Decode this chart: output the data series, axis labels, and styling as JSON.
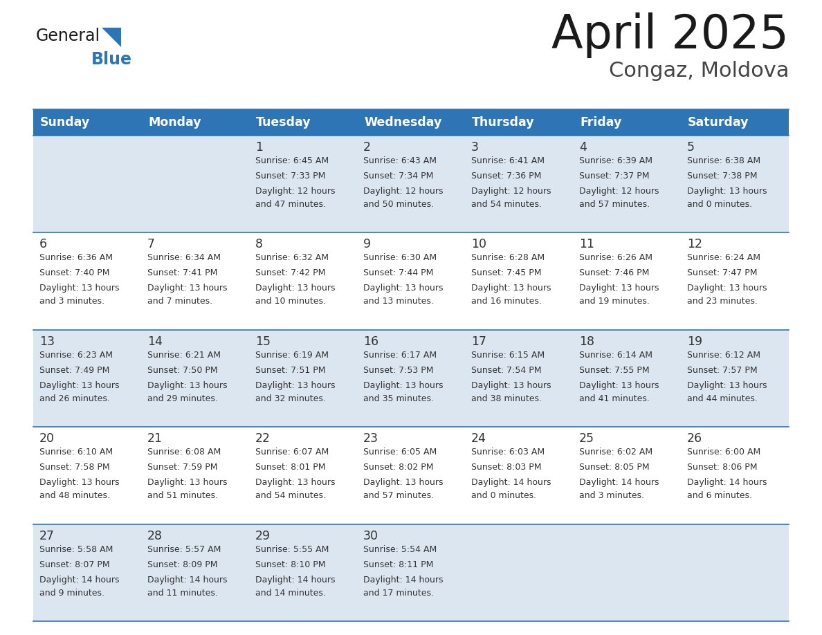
{
  "title": "April 2025",
  "subtitle": "Congaz, Moldova",
  "header_bg_color": "#2e75b6",
  "header_text_color": "#ffffff",
  "row_bg_even": "#dce6f1",
  "row_bg_odd": "#ffffff",
  "cell_border_color": "#2e75b6",
  "text_color": "#333333",
  "day_names": [
    "Sunday",
    "Monday",
    "Tuesday",
    "Wednesday",
    "Thursday",
    "Friday",
    "Saturday"
  ],
  "weeks": [
    [
      {
        "day": null,
        "sunrise": null,
        "sunset": null,
        "daylight": null
      },
      {
        "day": null,
        "sunrise": null,
        "sunset": null,
        "daylight": null
      },
      {
        "day": 1,
        "sunrise": "6:45 AM",
        "sunset": "7:33 PM",
        "daylight": "12 hours\nand 47 minutes."
      },
      {
        "day": 2,
        "sunrise": "6:43 AM",
        "sunset": "7:34 PM",
        "daylight": "12 hours\nand 50 minutes."
      },
      {
        "day": 3,
        "sunrise": "6:41 AM",
        "sunset": "7:36 PM",
        "daylight": "12 hours\nand 54 minutes."
      },
      {
        "day": 4,
        "sunrise": "6:39 AM",
        "sunset": "7:37 PM",
        "daylight": "12 hours\nand 57 minutes."
      },
      {
        "day": 5,
        "sunrise": "6:38 AM",
        "sunset": "7:38 PM",
        "daylight": "13 hours\nand 0 minutes."
      }
    ],
    [
      {
        "day": 6,
        "sunrise": "6:36 AM",
        "sunset": "7:40 PM",
        "daylight": "13 hours\nand 3 minutes."
      },
      {
        "day": 7,
        "sunrise": "6:34 AM",
        "sunset": "7:41 PM",
        "daylight": "13 hours\nand 7 minutes."
      },
      {
        "day": 8,
        "sunrise": "6:32 AM",
        "sunset": "7:42 PM",
        "daylight": "13 hours\nand 10 minutes."
      },
      {
        "day": 9,
        "sunrise": "6:30 AM",
        "sunset": "7:44 PM",
        "daylight": "13 hours\nand 13 minutes."
      },
      {
        "day": 10,
        "sunrise": "6:28 AM",
        "sunset": "7:45 PM",
        "daylight": "13 hours\nand 16 minutes."
      },
      {
        "day": 11,
        "sunrise": "6:26 AM",
        "sunset": "7:46 PM",
        "daylight": "13 hours\nand 19 minutes."
      },
      {
        "day": 12,
        "sunrise": "6:24 AM",
        "sunset": "7:47 PM",
        "daylight": "13 hours\nand 23 minutes."
      }
    ],
    [
      {
        "day": 13,
        "sunrise": "6:23 AM",
        "sunset": "7:49 PM",
        "daylight": "13 hours\nand 26 minutes."
      },
      {
        "day": 14,
        "sunrise": "6:21 AM",
        "sunset": "7:50 PM",
        "daylight": "13 hours\nand 29 minutes."
      },
      {
        "day": 15,
        "sunrise": "6:19 AM",
        "sunset": "7:51 PM",
        "daylight": "13 hours\nand 32 minutes."
      },
      {
        "day": 16,
        "sunrise": "6:17 AM",
        "sunset": "7:53 PM",
        "daylight": "13 hours\nand 35 minutes."
      },
      {
        "day": 17,
        "sunrise": "6:15 AM",
        "sunset": "7:54 PM",
        "daylight": "13 hours\nand 38 minutes."
      },
      {
        "day": 18,
        "sunrise": "6:14 AM",
        "sunset": "7:55 PM",
        "daylight": "13 hours\nand 41 minutes."
      },
      {
        "day": 19,
        "sunrise": "6:12 AM",
        "sunset": "7:57 PM",
        "daylight": "13 hours\nand 44 minutes."
      }
    ],
    [
      {
        "day": 20,
        "sunrise": "6:10 AM",
        "sunset": "7:58 PM",
        "daylight": "13 hours\nand 48 minutes."
      },
      {
        "day": 21,
        "sunrise": "6:08 AM",
        "sunset": "7:59 PM",
        "daylight": "13 hours\nand 51 minutes."
      },
      {
        "day": 22,
        "sunrise": "6:07 AM",
        "sunset": "8:01 PM",
        "daylight": "13 hours\nand 54 minutes."
      },
      {
        "day": 23,
        "sunrise": "6:05 AM",
        "sunset": "8:02 PM",
        "daylight": "13 hours\nand 57 minutes."
      },
      {
        "day": 24,
        "sunrise": "6:03 AM",
        "sunset": "8:03 PM",
        "daylight": "14 hours\nand 0 minutes."
      },
      {
        "day": 25,
        "sunrise": "6:02 AM",
        "sunset": "8:05 PM",
        "daylight": "14 hours\nand 3 minutes."
      },
      {
        "day": 26,
        "sunrise": "6:00 AM",
        "sunset": "8:06 PM",
        "daylight": "14 hours\nand 6 minutes."
      }
    ],
    [
      {
        "day": 27,
        "sunrise": "5:58 AM",
        "sunset": "8:07 PM",
        "daylight": "14 hours\nand 9 minutes."
      },
      {
        "day": 28,
        "sunrise": "5:57 AM",
        "sunset": "8:09 PM",
        "daylight": "14 hours\nand 11 minutes."
      },
      {
        "day": 29,
        "sunrise": "5:55 AM",
        "sunset": "8:10 PM",
        "daylight": "14 hours\nand 14 minutes."
      },
      {
        "day": 30,
        "sunrise": "5:54 AM",
        "sunset": "8:11 PM",
        "daylight": "14 hours\nand 17 minutes."
      },
      {
        "day": null,
        "sunrise": null,
        "sunset": null,
        "daylight": null
      },
      {
        "day": null,
        "sunrise": null,
        "sunset": null,
        "daylight": null
      },
      {
        "day": null,
        "sunrise": null,
        "sunset": null,
        "daylight": null
      }
    ]
  ]
}
